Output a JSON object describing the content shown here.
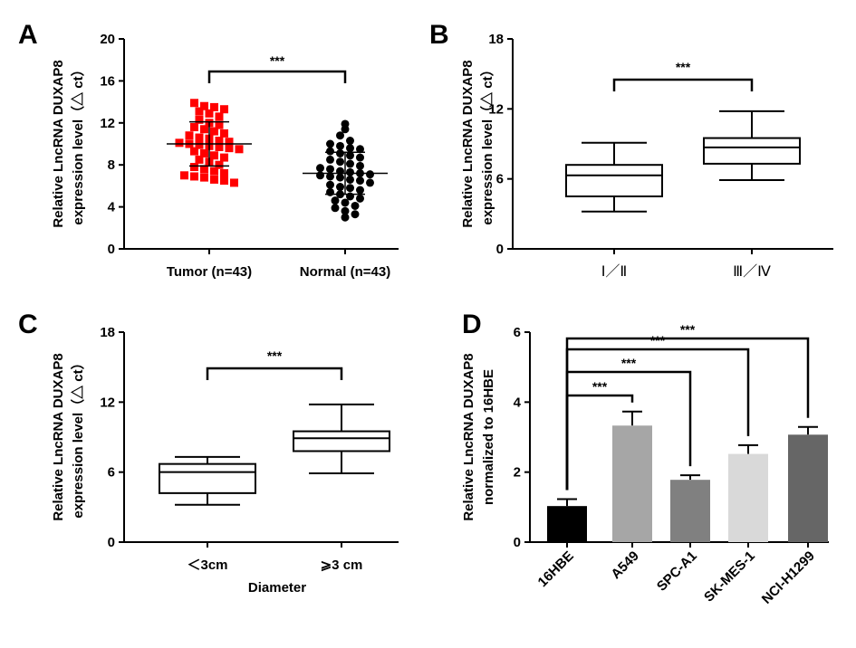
{
  "chart_data": [
    {
      "panel": "A",
      "type": "scatter",
      "ylabel_line1": "Relative LncRNA DUXAP8",
      "ylabel_line2": "expression level（△ ct）",
      "ylim": [
        0,
        20
      ],
      "yticks": [
        "0",
        "4",
        "8",
        "12",
        "16",
        "20"
      ],
      "categories": [
        "Tumor (n=43)",
        "Normal (n=43)"
      ],
      "significance": "***",
      "series": [
        {
          "name": "Tumor",
          "color": "#ff0000",
          "marker": "square",
          "mean": 10.0,
          "sd": 2.1,
          "values": [
            13.9,
            13.6,
            13.5,
            13.3,
            13.1,
            12.9,
            12.6,
            12.3,
            12.0,
            11.8,
            11.6,
            11.4,
            11.2,
            11.0,
            10.8,
            10.6,
            10.5,
            10.3,
            10.2,
            10.1,
            10.0,
            9.9,
            9.8,
            9.7,
            9.6,
            9.5,
            9.3,
            9.1,
            8.9,
            8.7,
            8.5,
            8.3,
            8.0,
            7.8,
            7.6,
            7.4,
            7.2,
            7.0,
            6.9,
            6.8,
            6.6,
            6.5,
            6.3
          ]
        },
        {
          "name": "Normal",
          "color": "#000000",
          "marker": "circle",
          "mean": 7.2,
          "sd": 2.0,
          "values": [
            11.9,
            11.4,
            10.8,
            10.3,
            10.0,
            9.8,
            9.6,
            9.5,
            9.3,
            9.1,
            8.9,
            8.7,
            8.5,
            8.3,
            8.1,
            7.9,
            7.7,
            7.6,
            7.4,
            7.3,
            7.2,
            7.1,
            7.0,
            6.9,
            6.8,
            6.6,
            6.5,
            6.3,
            6.1,
            5.9,
            5.8,
            5.6,
            5.4,
            5.2,
            5.0,
            4.8,
            4.6,
            4.4,
            4.1,
            3.9,
            3.6,
            3.3,
            3.0
          ]
        }
      ]
    },
    {
      "panel": "B",
      "type": "box",
      "ylabel_line1": "Relative LncRNA DUXAP8",
      "ylabel_line2": "expression level（△ ct）",
      "ylim": [
        0,
        18
      ],
      "yticks": [
        "0",
        "6",
        "12",
        "18"
      ],
      "categories": [
        "Ⅰ／Ⅱ",
        "Ⅲ／Ⅳ"
      ],
      "significance": "***",
      "boxes": [
        {
          "min": 3.2,
          "q1": 4.5,
          "median": 6.3,
          "q3": 7.2,
          "max": 9.1
        },
        {
          "min": 5.9,
          "q1": 7.3,
          "median": 8.7,
          "q3": 9.5,
          "max": 11.8
        }
      ]
    },
    {
      "panel": "C",
      "type": "box",
      "ylabel_line1": "Relative LncRNA DUXAP8",
      "ylabel_line2": "expression level（△ ct）",
      "ylim": [
        0,
        18
      ],
      "yticks": [
        "0",
        "6",
        "12",
        "18"
      ],
      "categories": [
        "＜3cm",
        "⩾3 cm"
      ],
      "xlabel": "Diameter",
      "significance": "***",
      "boxes": [
        {
          "min": 3.2,
          "q1": 4.2,
          "median": 6.0,
          "q3": 6.7,
          "max": 7.3
        },
        {
          "min": 5.9,
          "q1": 7.8,
          "median": 8.9,
          "q3": 9.5,
          "max": 11.8
        }
      ]
    },
    {
      "panel": "D",
      "type": "bar",
      "ylabel_line1": "Relative LncRNA DUXAP8",
      "ylabel_line2": "normalized to 16HBE",
      "ylim": [
        0,
        6
      ],
      "yticks": [
        "0",
        "2",
        "4",
        "6"
      ],
      "categories": [
        "16HBE",
        "A549",
        "SPC-A1",
        "SK-MES-1",
        "NCI-H1299"
      ],
      "values": [
        1.03,
        3.33,
        1.78,
        2.52,
        3.07
      ],
      "errors": [
        0.2,
        0.4,
        0.13,
        0.25,
        0.22
      ],
      "colors": [
        "#000000",
        "#a6a6a6",
        "#808080",
        "#d9d9d9",
        "#666666"
      ],
      "significance": [
        "***",
        "***",
        "***",
        "***"
      ]
    }
  ]
}
